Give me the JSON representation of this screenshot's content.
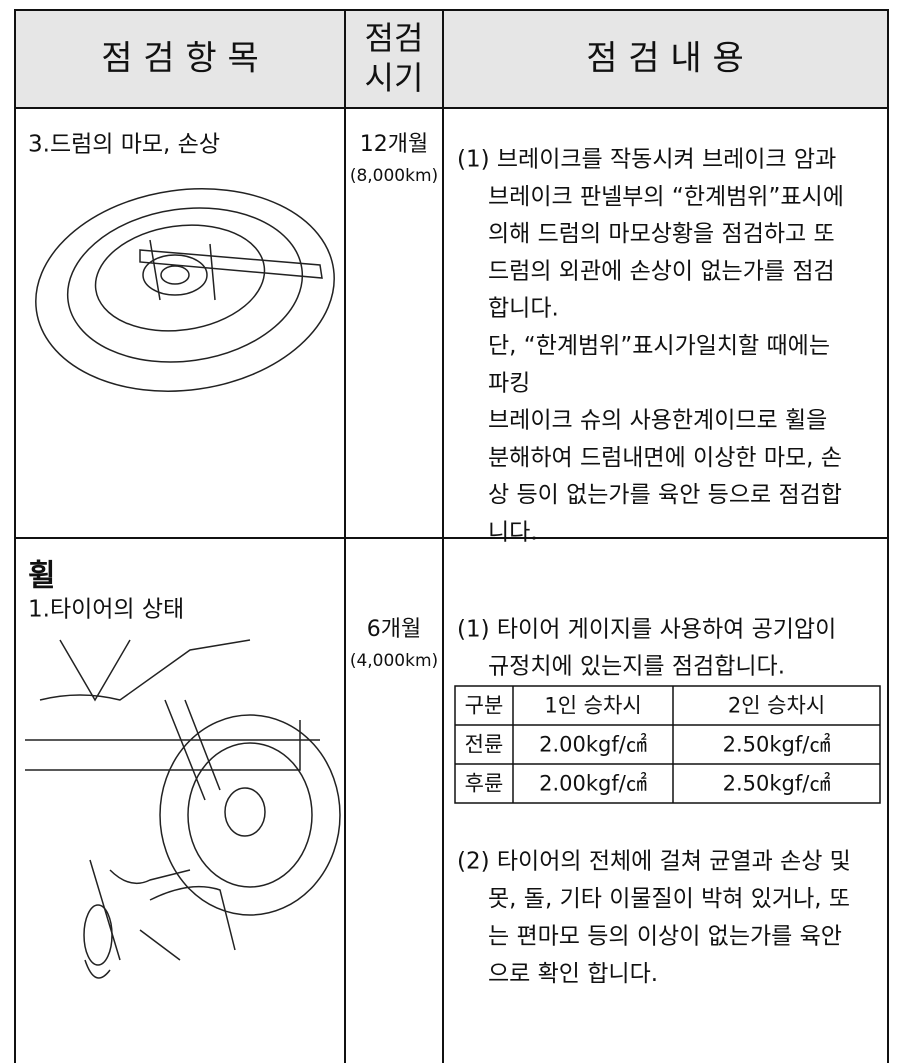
{
  "header": {
    "item": "점 검 항 목",
    "period_lines": [
      "점검",
      "시기"
    ],
    "content": "점 검 내 용"
  },
  "rows": [
    {
      "item": "3.드럼의 마모, 손상",
      "period": "12개월",
      "distance": "(8,000km)",
      "content_lines": [
        "(1) 브레이크를 작동시켜 브레이크 암과",
        "브레이크 판넬부의 “한계범위”표시에",
        "의해 드럼의 마모상황을 점검하고 또",
        "드럼의 외관에 손상이 없는가를 점검",
        "합니다.",
        "단, “한계범위”표시가일치할 때에는",
        "파킹",
        "브레이크 슈의 사용한계이므로 휠을",
        "분해하여 드럼내면에 이상한 마모, 손",
        "상 등이 없는가를 육안 등으로 점검합",
        "니다."
      ]
    },
    {
      "section": "휠",
      "item": "1.타이어의 상태",
      "period": "6개월",
      "distance": "(4,000km)",
      "content_lines": [
        "(1) 타이어 게이지를 사용하여 공기압이",
        "규정치에 있는지를 점검합니다."
      ],
      "pressure_table": {
        "header": [
          "구분",
          "1인 승차시",
          "2인 승차시"
        ],
        "rows": [
          [
            "전륜",
            "2.00kgf/㎠",
            "2.50kgf/㎠"
          ],
          [
            "후륜",
            "2.00kgf/㎠",
            "2.50kgf/㎠"
          ]
        ]
      },
      "content2_lines": [
        "(2) 타이어의 전체에 걸쳐 균열과 손상 및",
        "못, 돌, 기타 이물질이 박혀 있거나, 또",
        "는 편마모 등의 이상이 없는가를 육안",
        "으로 확인 합니다."
      ]
    }
  ]
}
